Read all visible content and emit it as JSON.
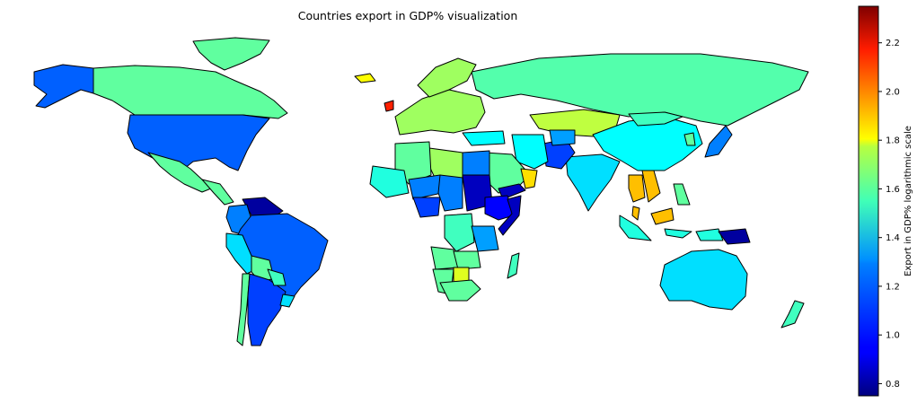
{
  "title": "Countries export in GDP% visualization",
  "colorbar": {
    "label": "Export in GDP% logarithmic scale",
    "min": 0.75,
    "max": 2.35,
    "ticks": [
      "0.8",
      "1.0",
      "1.2",
      "1.4",
      "1.6",
      "1.8",
      "2.0",
      "2.2"
    ],
    "tick_values": [
      0.8,
      1.0,
      1.2,
      1.4,
      1.6,
      1.8,
      2.0,
      2.2
    ],
    "colormap": "jet"
  },
  "regions": [
    {
      "name": "Canada",
      "value": 1.5
    },
    {
      "name": "Alaska",
      "value": 1.1
    },
    {
      "name": "United States",
      "value": 1.1
    },
    {
      "name": "Greenland",
      "value": 1.5
    },
    {
      "name": "Mexico",
      "value": 1.5
    },
    {
      "name": "Central America",
      "value": 1.5
    },
    {
      "name": "Venezuela",
      "value": 0.8
    },
    {
      "name": "Colombia",
      "value": 1.15
    },
    {
      "name": "Brazil",
      "value": 1.1
    },
    {
      "name": "Peru",
      "value": 1.3
    },
    {
      "name": "Bolivia",
      "value": 1.5
    },
    {
      "name": "Chile",
      "value": 1.5
    },
    {
      "name": "Argentina",
      "value": 1.05
    },
    {
      "name": "Paraguay",
      "value": 1.45
    },
    {
      "name": "Uruguay",
      "value": 1.3
    },
    {
      "name": "Russia",
      "value": 1.48
    },
    {
      "name": "Kazakhstan",
      "value": 1.65
    },
    {
      "name": "China",
      "value": 1.35
    },
    {
      "name": "Mongolia",
      "value": 1.45
    },
    {
      "name": "India",
      "value": 1.3
    },
    {
      "name": "Pakistan",
      "value": 1.05
    },
    {
      "name": "Iran",
      "value": 1.35
    },
    {
      "name": "Saudi Arabia",
      "value": 1.5
    },
    {
      "name": "Yemen",
      "value": 0.85
    },
    {
      "name": "Oman",
      "value": 1.8
    },
    {
      "name": "Egypt",
      "value": 1.15
    },
    {
      "name": "Libya",
      "value": 1.6
    },
    {
      "name": "Algeria",
      "value": 1.5
    },
    {
      "name": "Mali",
      "value": 1.4
    },
    {
      "name": "Niger",
      "value": 1.15
    },
    {
      "name": "Chad",
      "value": 1.15
    },
    {
      "name": "Sudan",
      "value": 0.85
    },
    {
      "name": "Ethiopia",
      "value": 0.95
    },
    {
      "name": "Somalia",
      "value": 0.85
    },
    {
      "name": "Nigeria",
      "value": 1.05
    },
    {
      "name": "DR Congo",
      "value": 1.45
    },
    {
      "name": "Angola",
      "value": 1.5
    },
    {
      "name": "Tanzania",
      "value": 1.2
    },
    {
      "name": "Zambia",
      "value": 1.5
    },
    {
      "name": "Namibia",
      "value": 1.5
    },
    {
      "name": "Botswana",
      "value": 1.7
    },
    {
      "name": "South Africa",
      "value": 1.5
    },
    {
      "name": "Madagascar",
      "value": 1.45
    },
    {
      "name": "Europe West",
      "value": 1.6
    },
    {
      "name": "Scandinavia",
      "value": 1.6
    },
    {
      "name": "Ireland",
      "value": 2.1
    },
    {
      "name": "Iceland",
      "value": 1.75
    },
    {
      "name": "Turkey",
      "value": 1.35
    },
    {
      "name": "Afghanistan",
      "value": 1.2
    },
    {
      "name": "Thailand",
      "value": 1.85
    },
    {
      "name": "Vietnam",
      "value": 1.85
    },
    {
      "name": "Malaysia",
      "value": 1.85
    },
    {
      "name": "Indonesia",
      "value": 1.4
    },
    {
      "name": "Papua New Guinea",
      "value": 0.8
    },
    {
      "name": "Japan",
      "value": 1.15
    },
    {
      "name": "Korea",
      "value": 1.5
    },
    {
      "name": "Philippines",
      "value": 1.5
    },
    {
      "name": "Australia",
      "value": 1.3
    },
    {
      "name": "New Zealand",
      "value": 1.45
    }
  ]
}
